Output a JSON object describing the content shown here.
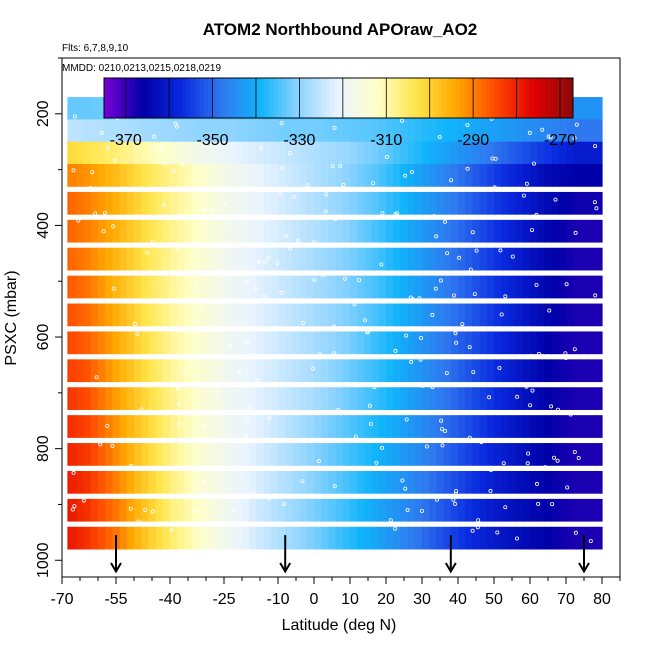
{
  "chart_data": {
    "type": "heatmap",
    "title": "ATOM2 Northbound APOraw_AO2",
    "subtitle_flights": "Flts: 6,7,8,9,10",
    "subtitle_dates": "MMDD: 0210,0213,0215,0218,0219",
    "xlabel": "Latitude (deg N)",
    "ylabel": "PSXC (mbar)",
    "xlim": [
      -70,
      85
    ],
    "ylim": [
      1030,
      100
    ],
    "x_ticks": [
      -70,
      -55,
      -40,
      -25,
      -10,
      0,
      10,
      20,
      30,
      40,
      50,
      60,
      70,
      80
    ],
    "y_ticks": [
      200,
      400,
      600,
      800,
      1000
    ],
    "colorbar": {
      "ticks": [
        -370,
        -350,
        -330,
        -310,
        -290,
        -270
      ],
      "range": [
        -375,
        -267
      ],
      "colors": [
        "#7a00d6",
        "#0000a8",
        "#0a2ae0",
        "#2f78ef",
        "#10b4fa",
        "#8fd4ff",
        "#eaf4ff",
        "#ffffc8",
        "#ffe54a",
        "#ffa800",
        "#ff4a00",
        "#e00000",
        "#8b0a0a"
      ]
    },
    "lat_axis": [
      -68,
      -60,
      -52,
      -44,
      -36,
      -28,
      -20,
      -12,
      -4,
      4,
      12,
      20,
      28,
      36,
      44,
      52,
      60,
      68,
      76
    ],
    "pressure_levels": [
      190,
      230,
      270,
      310,
      360,
      410,
      460,
      510,
      560,
      610,
      660,
      710,
      760,
      810,
      860,
      910,
      960
    ],
    "values_rows": [
      [
        -333,
        -333,
        -332,
        -332,
        -333,
        -333,
        -334,
        -334,
        -335,
        -335,
        -336,
        -336,
        -337,
        -338,
        -338,
        -340,
        -342,
        -343,
        -344
      ],
      [
        -325,
        -326,
        -327,
        -328,
        -329,
        -330,
        -330,
        -331,
        -332,
        -332,
        -333,
        -334,
        -336,
        -338,
        -340,
        -342,
        -344,
        -346,
        -348
      ],
      [
        -300,
        -303,
        -306,
        -310,
        -314,
        -318,
        -321,
        -323,
        -325,
        -327,
        -329,
        -332,
        -336,
        -340,
        -344,
        -348,
        -352,
        -356,
        -360
      ],
      [
        -289,
        -292,
        -297,
        -303,
        -308,
        -313,
        -318,
        -321,
        -324,
        -327,
        -330,
        -334,
        -339,
        -344,
        -349,
        -354,
        -359,
        -364,
        -366
      ],
      [
        -286,
        -290,
        -295,
        -302,
        -308,
        -313,
        -318,
        -321,
        -324,
        -327,
        -330,
        -334,
        -339,
        -344,
        -349,
        -354,
        -359,
        -364,
        -367
      ],
      [
        -286,
        -290,
        -295,
        -302,
        -308,
        -313,
        -318,
        -321,
        -324,
        -327,
        -330,
        -335,
        -340,
        -345,
        -350,
        -355,
        -360,
        -365,
        -368
      ],
      [
        -286,
        -290,
        -296,
        -303,
        -309,
        -314,
        -319,
        -322,
        -325,
        -328,
        -331,
        -335,
        -340,
        -345,
        -350,
        -355,
        -360,
        -365,
        -368
      ],
      [
        -285,
        -289,
        -296,
        -303,
        -309,
        -314,
        -319,
        -322,
        -325,
        -328,
        -331,
        -335,
        -340,
        -345,
        -350,
        -355,
        -360,
        -365,
        -368
      ],
      [
        -284,
        -288,
        -295,
        -303,
        -309,
        -314,
        -319,
        -322,
        -325,
        -328,
        -331,
        -335,
        -340,
        -345,
        -350,
        -355,
        -360,
        -365,
        -368
      ],
      [
        -283,
        -287,
        -294,
        -302,
        -309,
        -314,
        -319,
        -322,
        -325,
        -328,
        -331,
        -336,
        -341,
        -346,
        -351,
        -356,
        -361,
        -366,
        -368
      ],
      [
        -282,
        -286,
        -294,
        -302,
        -309,
        -314,
        -319,
        -322,
        -325,
        -328,
        -332,
        -336,
        -341,
        -346,
        -351,
        -356,
        -361,
        -366,
        -368
      ],
      [
        -281,
        -285,
        -293,
        -301,
        -308,
        -314,
        -319,
        -322,
        -325,
        -328,
        -332,
        -336,
        -341,
        -346,
        -351,
        -356,
        -361,
        -366,
        -368
      ],
      [
        -280,
        -284,
        -292,
        -300,
        -308,
        -314,
        -319,
        -322,
        -326,
        -330,
        -334,
        -338,
        -342,
        -347,
        -352,
        -357,
        -362,
        -366,
        -368
      ],
      [
        -279,
        -283,
        -291,
        -300,
        -308,
        -314,
        -319,
        -323,
        -327,
        -331,
        -335,
        -339,
        -343,
        -348,
        -353,
        -358,
        -362,
        -366,
        -368
      ],
      [
        -278,
        -282,
        -290,
        -299,
        -307,
        -314,
        -319,
        -323,
        -327,
        -331,
        -335,
        -340,
        -344,
        -349,
        -354,
        -359,
        -363,
        -366,
        -368
      ],
      [
        -277,
        -282,
        -289,
        -298,
        -307,
        -313,
        -319,
        -324,
        -328,
        -332,
        -336,
        -341,
        -345,
        -350,
        -355,
        -360,
        -363,
        -366,
        -368
      ],
      [
        -277,
        -282,
        -289,
        -298,
        -306,
        -313,
        -319,
        -324,
        -328,
        -332,
        -337,
        -341,
        -346,
        -351,
        -356,
        -360,
        -363,
        -366,
        -368
      ]
    ],
    "profile_markers_lat": [
      -55,
      -8,
      38,
      75
    ],
    "grid": false
  }
}
